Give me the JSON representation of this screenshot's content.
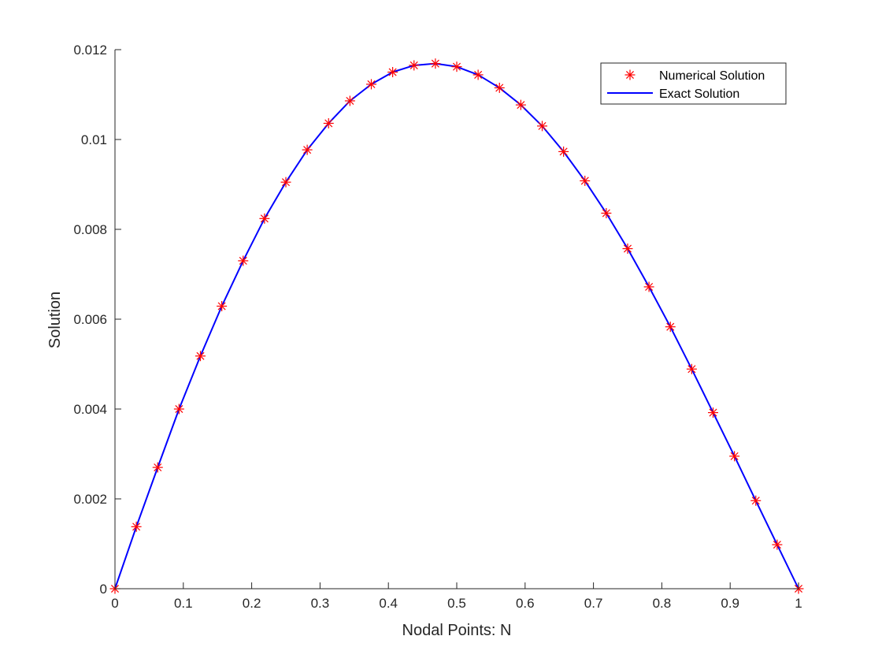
{
  "chart_data": {
    "type": "line",
    "xlabel": "Nodal Points: N",
    "ylabel": "Solution",
    "xlim": [
      0,
      1
    ],
    "ylim": [
      0,
      0.012
    ],
    "grid": false,
    "legend_position": "top-right",
    "x_ticks": [
      "0",
      "0.1",
      "0.2",
      "0.3",
      "0.4",
      "0.5",
      "0.6",
      "0.7",
      "0.8",
      "0.9",
      "1"
    ],
    "y_ticks": [
      "0",
      "0.002",
      "0.004",
      "0.006",
      "0.008",
      "0.01",
      "0.012"
    ],
    "series": [
      {
        "name": "Numerical Solution",
        "style": "marker",
        "marker": "asterisk",
        "color": "#ff0000",
        "x": [
          0,
          0.03125,
          0.0625,
          0.09375,
          0.125,
          0.15625,
          0.1875,
          0.21875,
          0.25,
          0.28125,
          0.3125,
          0.34375,
          0.375,
          0.40625,
          0.4375,
          0.46875,
          0.5,
          0.53125,
          0.5625,
          0.59375,
          0.625,
          0.65625,
          0.6875,
          0.71875,
          0.75,
          0.78125,
          0.8125,
          0.84375,
          0.875,
          0.90625,
          0.9375,
          0.96875,
          1
        ],
        "y": [
          0,
          0.00138,
          0.0027,
          0.004,
          0.00518,
          0.00629,
          0.0073,
          0.00824,
          0.00905,
          0.00977,
          0.01036,
          0.01086,
          0.01123,
          0.0115,
          0.01165,
          0.01169,
          0.01162,
          0.01144,
          0.01115,
          0.01077,
          0.0103,
          0.00973,
          0.00908,
          0.00836,
          0.00757,
          0.00672,
          0.00583,
          0.00489,
          0.00392,
          0.00295,
          0.00196,
          0.00098,
          0
        ]
      },
      {
        "name": "Exact Solution",
        "style": "line",
        "color": "#0000ff",
        "x": [
          0,
          0.03125,
          0.0625,
          0.09375,
          0.125,
          0.15625,
          0.1875,
          0.21875,
          0.25,
          0.28125,
          0.3125,
          0.34375,
          0.375,
          0.40625,
          0.4375,
          0.46875,
          0.5,
          0.53125,
          0.5625,
          0.59375,
          0.625,
          0.65625,
          0.6875,
          0.71875,
          0.75,
          0.78125,
          0.8125,
          0.84375,
          0.875,
          0.90625,
          0.9375,
          0.96875,
          1
        ],
        "y": [
          0,
          0.00138,
          0.0027,
          0.004,
          0.00518,
          0.00629,
          0.0073,
          0.00824,
          0.00905,
          0.00977,
          0.01036,
          0.01086,
          0.01123,
          0.0115,
          0.01165,
          0.01169,
          0.01162,
          0.01144,
          0.01115,
          0.01077,
          0.0103,
          0.00973,
          0.00908,
          0.00836,
          0.00757,
          0.00672,
          0.00583,
          0.00489,
          0.00392,
          0.00295,
          0.00196,
          0.00098,
          0
        ]
      }
    ]
  }
}
